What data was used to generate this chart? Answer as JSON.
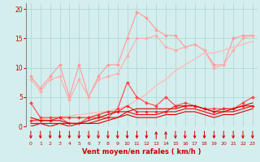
{
  "x": [
    0,
    1,
    2,
    3,
    4,
    5,
    6,
    7,
    8,
    9,
    10,
    11,
    12,
    13,
    14,
    15,
    16,
    17,
    18,
    19,
    20,
    21,
    22,
    23
  ],
  "series": [
    {
      "name": "gust_max",
      "color": "#ff9999",
      "lw": 0.8,
      "marker": "D",
      "markersize": 2.0,
      "values": [
        8.5,
        6.5,
        8.5,
        10.5,
        5.0,
        10.5,
        5.0,
        8.5,
        10.5,
        10.5,
        15.0,
        19.5,
        18.5,
        16.5,
        15.5,
        15.5,
        13.5,
        14.0,
        13.0,
        10.5,
        10.5,
        15.0,
        15.5,
        15.5
      ]
    },
    {
      "name": "gust_avg",
      "color": "#ffaaaa",
      "lw": 0.8,
      "marker": "D",
      "markersize": 2.0,
      "values": [
        8.0,
        6.0,
        8.0,
        8.5,
        4.5,
        8.0,
        5.0,
        8.0,
        8.5,
        9.0,
        12.0,
        15.0,
        15.0,
        15.5,
        13.5,
        13.0,
        13.5,
        14.0,
        13.0,
        10.0,
        10.5,
        13.0,
        15.0,
        15.5
      ]
    },
    {
      "name": "wind_trend",
      "color": "#ffbbbb",
      "lw": 1.0,
      "marker": null,
      "markersize": 0,
      "values": [
        1.0,
        1.2,
        1.4,
        1.6,
        1.8,
        2.0,
        2.2,
        2.4,
        2.6,
        3.0,
        3.5,
        4.5,
        5.5,
        7.0,
        8.0,
        9.5,
        10.5,
        11.5,
        12.5,
        12.5,
        13.0,
        13.5,
        14.0,
        14.5
      ]
    },
    {
      "name": "wind_max",
      "color": "#ff4444",
      "lw": 0.8,
      "marker": "D",
      "markersize": 2.0,
      "values": [
        4.0,
        1.5,
        1.5,
        1.5,
        0.5,
        0.5,
        1.5,
        1.5,
        1.5,
        3.0,
        7.5,
        5.0,
        4.0,
        3.5,
        5.0,
        3.5,
        4.0,
        3.5,
        3.0,
        3.0,
        3.0,
        3.0,
        4.0,
        5.0
      ]
    },
    {
      "name": "wind_avg2",
      "color": "#ff2222",
      "lw": 0.8,
      "marker": "D",
      "markersize": 1.8,
      "values": [
        1.0,
        1.0,
        1.0,
        1.5,
        1.5,
        1.5,
        1.5,
        2.0,
        2.5,
        2.5,
        3.5,
        2.5,
        2.5,
        2.5,
        2.5,
        3.5,
        3.5,
        3.5,
        3.0,
        2.5,
        3.0,
        3.0,
        3.5,
        3.5
      ]
    },
    {
      "name": "wind_line1",
      "color": "#cc0000",
      "lw": 0.8,
      "marker": null,
      "markersize": 0,
      "values": [
        1.5,
        1.0,
        1.0,
        1.0,
        0.5,
        0.5,
        1.0,
        1.5,
        2.0,
        2.5,
        2.5,
        3.0,
        3.0,
        3.0,
        3.0,
        3.0,
        3.5,
        3.5,
        3.0,
        2.5,
        2.5,
        3.0,
        3.5,
        4.0
      ]
    },
    {
      "name": "wind_line2",
      "color": "#ee0000",
      "lw": 0.8,
      "marker": null,
      "markersize": 0,
      "values": [
        0.5,
        0.5,
        0.5,
        0.5,
        0.5,
        0.5,
        0.5,
        1.0,
        1.5,
        1.5,
        2.5,
        2.0,
        2.0,
        2.0,
        2.5,
        2.5,
        3.0,
        3.0,
        2.5,
        2.0,
        2.5,
        2.5,
        3.0,
        3.5
      ]
    },
    {
      "name": "wind_line3",
      "color": "#dd0000",
      "lw": 0.8,
      "marker": null,
      "markersize": 0,
      "values": [
        0.0,
        0.5,
        0.0,
        0.5,
        0.0,
        0.5,
        0.5,
        0.5,
        1.0,
        1.5,
        2.0,
        1.5,
        1.5,
        1.5,
        2.0,
        2.0,
        2.5,
        2.5,
        2.0,
        1.5,
        2.0,
        2.0,
        2.5,
        3.0
      ]
    }
  ],
  "down_indices": [
    0,
    1,
    2,
    3,
    4,
    5,
    6,
    7,
    8,
    9,
    10,
    11,
    12,
    15,
    16,
    17,
    18,
    19,
    20,
    21,
    22,
    23
  ],
  "up_indices": [
    13,
    14
  ],
  "arrow_color": "#cc0000",
  "xlabel": "Vent moyen/en rafales ( km/h )",
  "xlim": [
    -0.5,
    23.5
  ],
  "ylim": [
    0,
    21
  ],
  "yticks": [
    0,
    5,
    10,
    15,
    20
  ],
  "xticks": [
    0,
    1,
    2,
    3,
    4,
    5,
    6,
    7,
    8,
    9,
    10,
    11,
    12,
    13,
    14,
    15,
    16,
    17,
    18,
    19,
    20,
    21,
    22,
    23
  ],
  "bg_color": "#d4eeed",
  "grid_color": "#b0d8d8",
  "xlabel_color": "#cc0000",
  "tick_color": "#cc0000",
  "left_spine_color": "#888888"
}
